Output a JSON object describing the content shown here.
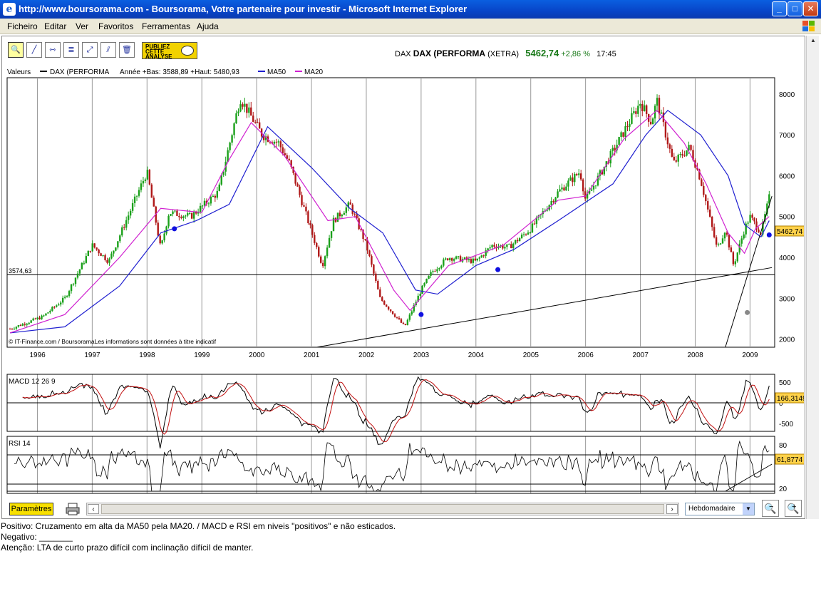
{
  "window": {
    "title": "http://www.boursorama.com - Boursorama, Votre partenaire pour investir - Microsoft Internet Explorer",
    "buttons": {
      "minimize": "_",
      "maximize": "□",
      "close": "✕"
    }
  },
  "menu": [
    "Ficheiro",
    "Editar",
    "Ver",
    "Favoritos",
    "Ferramentas",
    "Ajuda"
  ],
  "toolbar": {
    "publish_label": "PUBLIEZ CETTE ANALYSE"
  },
  "quote": {
    "market": "DAX",
    "name": "DAX (PERFORMA",
    "exchange": "(XETRA)",
    "price": "5462,74",
    "change": "+2,86 %",
    "time": "17:45"
  },
  "legend": {
    "values": "Valeurs",
    "series": "DAX (PERFORMA",
    "year_range": "Année +Bas: 3588,89 +Haut: 5480,93",
    "ma50": "MA50",
    "ma20": "MA20"
  },
  "colors": {
    "up": "#1aa01a",
    "down": "#b01818",
    "ma50": "#1f1fd0",
    "ma20": "#d020d0",
    "label": "#ffd24a"
  },
  "chart_data": [
    {
      "type": "candlestick",
      "panel": "price",
      "x_tick_labels": [
        "1996",
        "1997",
        "1998",
        "1999",
        "2000",
        "2001",
        "2002",
        "2003",
        "2004",
        "2005",
        "2006",
        "2007",
        "2008",
        "2009"
      ],
      "y_ticks": [
        2000,
        3000,
        4000,
        5000,
        6000,
        7000,
        8000
      ],
      "ylim": [
        1800,
        8400
      ],
      "reference_line": {
        "value": 3574.63,
        "label": "3574,63"
      },
      "last_value_label": "5462,74",
      "source_note": "© IT-Finance.com / BoursoramaLes informations sont données à titre indicatif",
      "path": [
        [
          1996,
          2250
        ],
        [
          1996.6,
          2550
        ],
        [
          1997,
          3000
        ],
        [
          1997.5,
          4300
        ],
        [
          1997.8,
          3900
        ],
        [
          1998.5,
          6100
        ],
        [
          1998.75,
          4200
        ],
        [
          1998.9,
          5100
        ],
        [
          1999.3,
          5000
        ],
        [
          1999.8,
          5600
        ],
        [
          2000.2,
          7900
        ],
        [
          2000.6,
          7000
        ],
        [
          2000.9,
          6800
        ],
        [
          2001.1,
          6300
        ],
        [
          2001.7,
          3800
        ],
        [
          2001.9,
          4900
        ],
        [
          2002.2,
          5300
        ],
        [
          2002.5,
          4300
        ],
        [
          2002.75,
          3000
        ],
        [
          2003.2,
          2300
        ],
        [
          2003.5,
          3200
        ],
        [
          2003.7,
          3650
        ],
        [
          2004,
          4000
        ],
        [
          2004.5,
          3900
        ],
        [
          2004.8,
          4300
        ],
        [
          2005.1,
          4250
        ],
        [
          2005.5,
          4700
        ],
        [
          2006,
          5600
        ],
        [
          2006.4,
          6100
        ],
        [
          2006.5,
          5400
        ],
        [
          2007,
          6600
        ],
        [
          2007.5,
          7800
        ],
        [
          2007.7,
          7300
        ],
        [
          2007.8,
          7850
        ],
        [
          2008.1,
          6300
        ],
        [
          2008.4,
          6700
        ],
        [
          2008.6,
          5900
        ],
        [
          2008.9,
          4200
        ],
        [
          2009.05,
          4700
        ],
        [
          2009.2,
          3800
        ],
        [
          2009.4,
          4700
        ],
        [
          2009.5,
          5000
        ],
        [
          2009.7,
          4600
        ],
        [
          2009.85,
          5462.74
        ]
      ],
      "ma20_path": [
        [
          1996,
          2150
        ],
        [
          1997,
          2600
        ],
        [
          1998,
          4000
        ],
        [
          1998.75,
          5200
        ],
        [
          1999.5,
          5100
        ],
        [
          2000,
          6400
        ],
        [
          2000.4,
          7300
        ],
        [
          2001,
          6500
        ],
        [
          2001.8,
          4900
        ],
        [
          2002.3,
          5000
        ],
        [
          2003,
          3200
        ],
        [
          2003.3,
          2700
        ],
        [
          2004,
          3800
        ],
        [
          2005,
          4300
        ],
        [
          2006,
          5400
        ],
        [
          2006.5,
          5500
        ],
        [
          2007.2,
          6900
        ],
        [
          2007.8,
          7600
        ],
        [
          2008.3,
          6800
        ],
        [
          2008.7,
          5800
        ],
        [
          2009.1,
          4600
        ],
        [
          2009.4,
          4100
        ],
        [
          2009.6,
          4700
        ],
        [
          2009.85,
          5000
        ]
      ],
      "ma50_path": [
        [
          1996,
          2150
        ],
        [
          1997,
          2300
        ],
        [
          1998,
          3300
        ],
        [
          1998.75,
          4600
        ],
        [
          1999.4,
          4900
        ],
        [
          2000,
          5300
        ],
        [
          2000.7,
          7200
        ],
        [
          2001.5,
          6200
        ],
        [
          2002.2,
          5200
        ],
        [
          2002.8,
          4600
        ],
        [
          2003.4,
          3200
        ],
        [
          2003.8,
          3100
        ],
        [
          2004.5,
          3800
        ],
        [
          2005.2,
          4200
        ],
        [
          2006,
          4900
        ],
        [
          2007,
          5800
        ],
        [
          2007.6,
          7000
        ],
        [
          2008,
          7600
        ],
        [
          2008.6,
          7000
        ],
        [
          2009.1,
          6000
        ],
        [
          2009.4,
          4800
        ],
        [
          2009.7,
          4500
        ],
        [
          2009.85,
          4900
        ]
      ],
      "markers": [
        {
          "x": 1999.0,
          "y": 4700,
          "color": "blue"
        },
        {
          "x": 2003.5,
          "y": 2600,
          "color": "blue"
        },
        {
          "x": 2004.9,
          "y": 3700,
          "color": "blue"
        },
        {
          "x": 2009.45,
          "y": 2650,
          "color": "gray"
        },
        {
          "x": 2009.85,
          "y": 4550,
          "color": "blue"
        }
      ],
      "trendlines": [
        [
          [
            2001.6,
            1800
          ],
          [
            2009.9,
            3750
          ]
        ],
        [
          [
            2009.05,
            1800
          ],
          [
            2009.9,
            5500
          ]
        ]
      ]
    },
    {
      "type": "line",
      "panel": "macd",
      "title": "MACD 12 26 9",
      "y_tick_labels": [
        "500",
        "0",
        "-500"
      ],
      "last_value_label": "166,3149"
    },
    {
      "type": "line",
      "panel": "rsi",
      "title": "RSI 14",
      "y_tick_labels": [
        "80",
        "20"
      ],
      "last_value_label": "61,8774"
    }
  ],
  "bottom": {
    "params_label": "Paramètres",
    "period": "Hebdomadaire",
    "zoom_out": "−",
    "zoom_in": "+"
  },
  "notes": [
    "Positivo: Cruzamento em alta da MA50 pela MA20.  /  MACD e RSI em niveis \"positivos\" e não esticados.",
    "Negativo: _______",
    "Atenção: LTA de curto prazo difícil com inclinação difícil de manter."
  ]
}
